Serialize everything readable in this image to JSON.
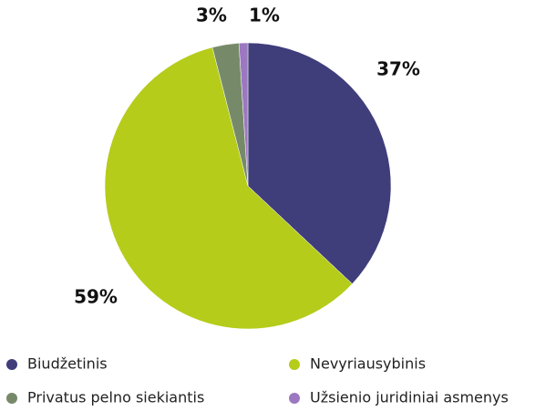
{
  "chart_data": {
    "type": "pie",
    "categories": [
      "Biudžetinis",
      "Nevyriausybinis",
      "Privatus pelno siekiantis",
      "Užsienio juridiniai asmenys"
    ],
    "values": [
      37,
      59,
      3,
      1
    ],
    "value_labels": [
      "37%",
      "59%",
      "3%",
      "1%"
    ],
    "colors": [
      "#3f3d7a",
      "#b5cc1a",
      "#768a69",
      "#9b78c0"
    ],
    "legend": "bottom"
  }
}
